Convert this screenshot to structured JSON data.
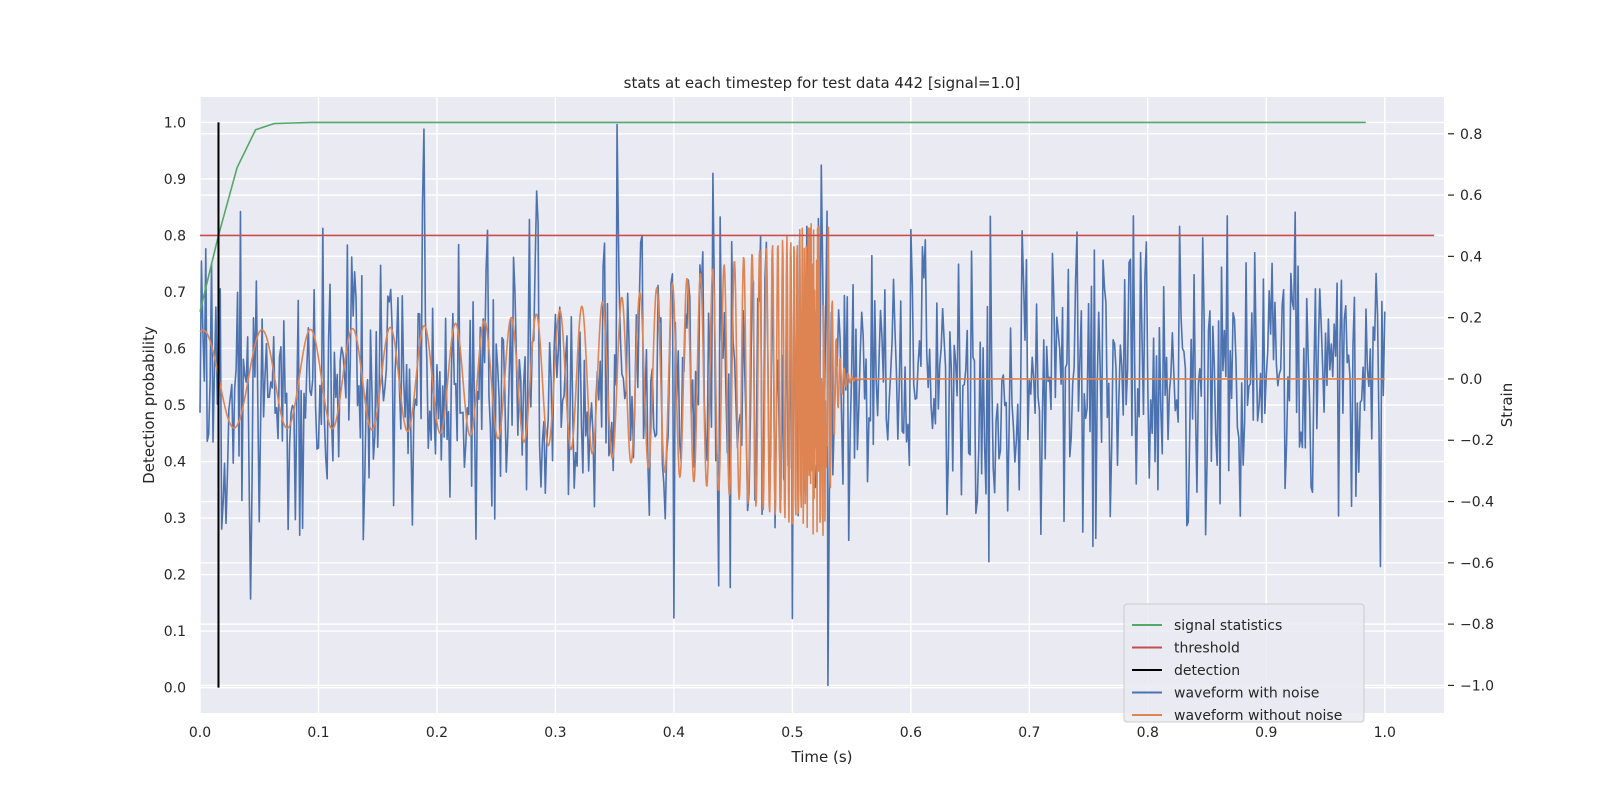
{
  "chart_data": {
    "type": "line",
    "title": "stats at each timestep for test data 442 [signal=1.0]",
    "xlabel": "Time (s)",
    "ylabel": "Detection probability",
    "y2label": "Strain",
    "xlim": [
      0.0,
      1.05
    ],
    "ylim": [
      -0.045,
      1.045
    ],
    "y2lim": [
      -1.09,
      0.92
    ],
    "xticks": [
      "0.0",
      "0.1",
      "0.2",
      "0.3",
      "0.4",
      "0.5",
      "0.6",
      "0.7",
      "0.8",
      "0.9",
      "1.0"
    ],
    "yticks": [
      "0.0",
      "0.1",
      "0.2",
      "0.3",
      "0.4",
      "0.5",
      "0.6",
      "0.7",
      "0.8",
      "0.9",
      "1.0"
    ],
    "y2ticks": [
      "−1.0",
      "−0.8",
      "−0.6",
      "−0.4",
      "−0.2",
      "0.0",
      "0.2",
      "0.4",
      "0.6",
      "0.8"
    ],
    "grid": true,
    "legend_position": "bottom-right",
    "legend": [
      {
        "label": "signal statistics",
        "color": "#55a868"
      },
      {
        "label": "threshold",
        "color": "#c44e52"
      },
      {
        "label": "detection",
        "color": "#000000"
      },
      {
        "label": "waveform with noise",
        "color": "#4c72b0"
      },
      {
        "label": "waveform without noise",
        "color": "#dd8452"
      }
    ],
    "series": [
      {
        "name": "signal statistics",
        "axis": "left",
        "color": "#55a868",
        "x": [
          0.0,
          0.0156,
          0.0313,
          0.0469,
          0.0625,
          0.0781,
          0.0938,
          0.125,
          0.25,
          0.5,
          0.75,
          0.984
        ],
        "y": [
          0.665,
          0.8,
          0.92,
          0.987,
          0.998,
          0.999,
          1.0,
          1.0,
          1.0,
          1.0,
          1.0,
          1.0
        ]
      },
      {
        "name": "threshold",
        "axis": "left",
        "color": "#c44e52",
        "x": [
          0.0,
          1.0417
        ],
        "y": [
          0.8,
          0.8
        ]
      },
      {
        "name": "detection",
        "axis": "left",
        "color": "#000000",
        "x": [
          0.0156,
          0.0156
        ],
        "y": [
          0.0,
          1.0
        ]
      },
      {
        "name": "waveform with noise",
        "axis": "right",
        "color": "#4c72b0",
        "x_range": [
          0.0,
          1.0
        ],
        "y_range": [
          -1.0,
          0.83
        ],
        "peaks": [
          {
            "x": 0.352,
            "y": 0.83
          },
          {
            "x": 0.53,
            "y": -1.0
          },
          {
            "x": 0.4,
            "y": -0.78
          }
        ]
      },
      {
        "name": "waveform without noise",
        "axis": "right",
        "color": "#dd8452",
        "x_range": [
          0.0,
          1.0
        ],
        "peak_max": 0.56,
        "peak_min": -0.53,
        "merger_time": 0.53
      }
    ]
  }
}
